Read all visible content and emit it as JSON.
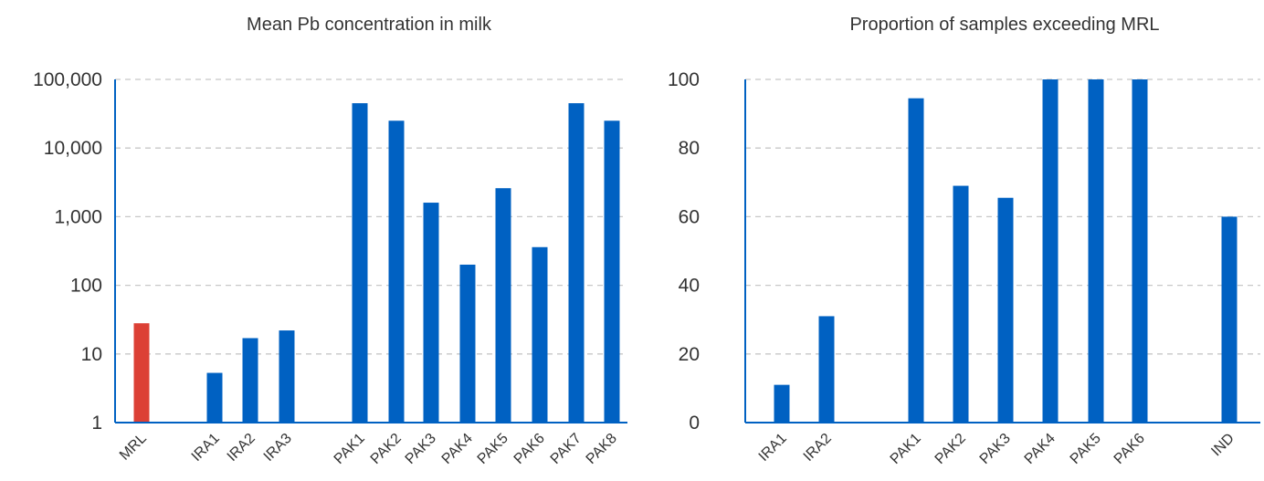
{
  "colors": {
    "bar": "#0061c2",
    "highlight": "#dc4035",
    "axis": "#0061c2",
    "grid": "#c8c8c8",
    "text": "#333333"
  },
  "chart_data": [
    {
      "type": "bar",
      "title": "Mean Pb concentration in milk",
      "xlabel": "",
      "ylabel": "",
      "scale": "log",
      "ylim": [
        1,
        100000
      ],
      "yticks": [
        "1",
        "10",
        "100",
        "1,000",
        "10,000",
        "100,000"
      ],
      "grid": true,
      "categories": [
        "MRL",
        "IRA1",
        "IRA2",
        "IRA3",
        "PAK1",
        "PAK2",
        "PAK3",
        "PAK4",
        "PAK5",
        "PAK6",
        "PAK7",
        "PAK8"
      ],
      "values": [
        28,
        5.3,
        17,
        22,
        45000,
        25000,
        1600,
        200,
        2600,
        360,
        45000,
        25000
      ],
      "highlight": [
        "MRL"
      ]
    },
    {
      "type": "bar",
      "title": "Proportion of samples exceeding MRL",
      "xlabel": "",
      "ylabel": "",
      "scale": "linear",
      "ylim": [
        0,
        100
      ],
      "yticks": [
        "0",
        "20",
        "40",
        "60",
        "80",
        "100"
      ],
      "grid": true,
      "categories": [
        "IRA1",
        "IRA2",
        "PAK1",
        "PAK2",
        "PAK3",
        "PAK4",
        "PAK5",
        "PAK6",
        "IND"
      ],
      "values": [
        11,
        31,
        94.5,
        69,
        65.5,
        100,
        100,
        100,
        60
      ]
    }
  ]
}
